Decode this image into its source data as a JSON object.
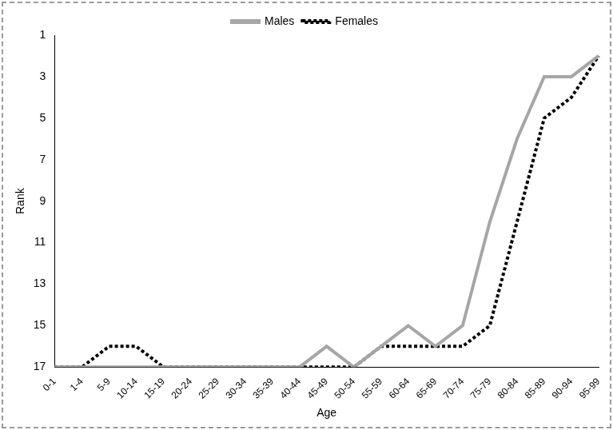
{
  "chart_data": {
    "type": "line",
    "x_label": "Age",
    "y_label": "Rank",
    "categories": [
      "0-1",
      "1-4",
      "5-9",
      "10-14",
      "15-19",
      "20-24",
      "25-29",
      "30-34",
      "35-39",
      "40-44",
      "45-49",
      "50-54",
      "55-59",
      "60-64",
      "65-69",
      "70-74",
      "75-79",
      "80-84",
      "85-89",
      "90-94",
      "95-99"
    ],
    "series": [
      {
        "name": "Males",
        "color": "#a6a6a6",
        "line_style": "solid",
        "values": [
          17,
          17,
          17,
          17,
          17,
          17,
          17,
          17,
          17,
          17,
          16,
          17,
          16,
          15,
          16,
          15,
          10,
          6,
          3,
          3,
          2
        ]
      },
      {
        "name": "Females",
        "color": "#000000",
        "line_style": "dotted",
        "values": [
          17,
          17,
          16,
          16,
          17,
          17,
          17,
          17,
          17,
          17,
          17,
          17,
          16,
          16,
          16,
          16,
          15,
          10,
          5,
          4,
          2
        ]
      }
    ],
    "ylim": [
      17,
      1
    ],
    "yticks": [
      1,
      3,
      5,
      7,
      9,
      11,
      13,
      15,
      17
    ],
    "grid": false,
    "legend": "top"
  }
}
